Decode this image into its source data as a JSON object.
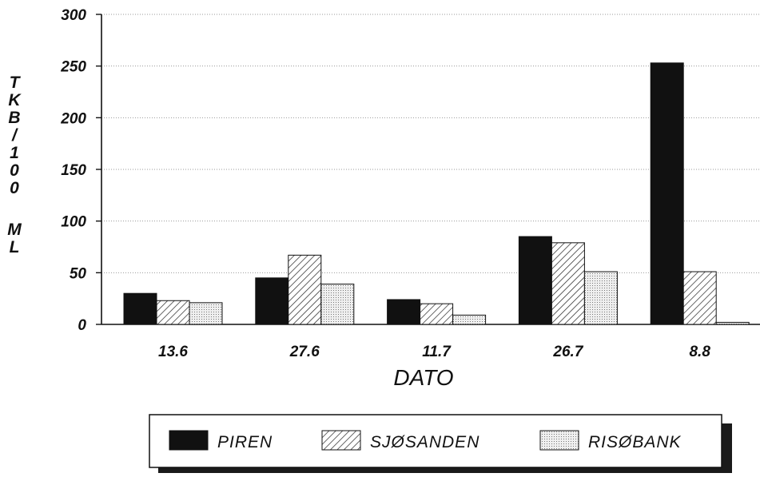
{
  "chart_data": {
    "type": "bar",
    "categories": [
      "13.6",
      "27.6",
      "11.7",
      "26.7",
      "8.8"
    ],
    "series": [
      {
        "name": "PIREN",
        "values": [
          30,
          45,
          24,
          85,
          253
        ],
        "fill": "solid-black"
      },
      {
        "name": "SJØSANDEN",
        "values": [
          23,
          67,
          20,
          79,
          51
        ],
        "fill": "diagonal-hatch"
      },
      {
        "name": "RISØBANK",
        "values": [
          21,
          39,
          9,
          51,
          2
        ],
        "fill": "dotted-light"
      }
    ],
    "title": "",
    "xlabel": "DATO",
    "ylabel": "TKB/100 ML",
    "ylabel_lines": [
      "T",
      "K",
      "B",
      "/",
      "1",
      "0",
      "0",
      "",
      "M",
      "L"
    ],
    "ylim": [
      0,
      300
    ],
    "yticks": [
      0,
      50,
      100,
      150,
      200,
      250,
      300
    ],
    "grid": true,
    "legend_position": "bottom"
  },
  "colors": {
    "piren": "#111111",
    "sjosanden_hatch": "#222222",
    "risobank_dots": "#888888",
    "grid": "#9a9a9a",
    "legend_shadow": "#1a1a1a"
  }
}
